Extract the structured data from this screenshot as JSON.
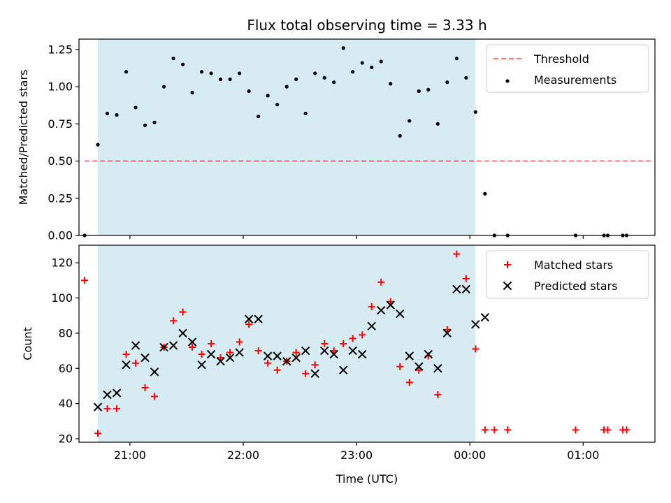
{
  "title": "Flux total observing time = 3.33 h",
  "colors": {
    "observing_span": "#add8e6",
    "threshold": "#ff0000",
    "measurements": "#000000",
    "matched": "#ff0000",
    "predicted": "#000000"
  },
  "chart_data": [
    {
      "type": "scatter",
      "panel": "top",
      "title": "Flux total observing time = 3.33 h",
      "xlabel": "",
      "ylabel": "Matched/Predicted stars",
      "xlim": [
        "20:33",
        "01:38"
      ],
      "ylim": [
        0,
        1.32
      ],
      "yticks": [
        0.0,
        0.25,
        0.5,
        0.75,
        1.0,
        1.25
      ],
      "ytick_labels": [
        "0.00",
        "0.25",
        "0.50",
        "0.75",
        "1.00",
        "1.25"
      ],
      "xticks": [
        "21:00",
        "22:00",
        "23:00",
        "00:00",
        "01:00"
      ],
      "observing_span": [
        "20:43",
        "00:03"
      ],
      "grid": false,
      "legend_position": "top-right",
      "series": [
        {
          "name": "Threshold",
          "kind": "dashed-line",
          "x": [
            "20:36",
            "01:36"
          ],
          "y": [
            0.5,
            0.5
          ]
        },
        {
          "name": "Measurements",
          "kind": "points",
          "x": [
            "20:36",
            "20:43",
            "20:48",
            "20:53",
            "20:58",
            "21:03",
            "21:08",
            "21:13",
            "21:18",
            "21:23",
            "21:28",
            "21:33",
            "21:38",
            "21:43",
            "21:48",
            "21:53",
            "21:58",
            "22:03",
            "22:08",
            "22:13",
            "22:18",
            "22:23",
            "22:28",
            "22:33",
            "22:38",
            "22:43",
            "22:48",
            "22:53",
            "22:58",
            "23:03",
            "23:08",
            "23:13",
            "23:18",
            "23:23",
            "23:28",
            "23:33",
            "23:38",
            "23:43",
            "23:48",
            "23:53",
            "23:58",
            "00:03",
            "00:08",
            "00:13",
            "00:20",
            "00:56",
            "01:11",
            "01:13",
            "01:21",
            "01:23"
          ],
          "y": [
            0.0,
            0.61,
            0.82,
            0.81,
            1.1,
            0.86,
            0.74,
            0.76,
            1.0,
            1.19,
            1.15,
            0.96,
            1.1,
            1.09,
            1.05,
            1.05,
            1.09,
            0.97,
            0.8,
            0.94,
            0.88,
            1.0,
            1.05,
            0.82,
            1.09,
            1.06,
            1.03,
            1.26,
            1.1,
            1.16,
            1.13,
            1.17,
            1.02,
            0.67,
            0.77,
            0.97,
            0.98,
            0.75,
            1.03,
            1.19,
            1.06,
            0.83,
            0.28,
            0.0,
            0.0,
            0.0,
            0.0,
            0.0,
            0.0,
            0.0
          ]
        }
      ]
    },
    {
      "type": "scatter",
      "panel": "bottom",
      "xlabel": "Time (UTC)",
      "ylabel": "Count",
      "xlim": [
        "20:33",
        "01:38"
      ],
      "ylim": [
        18,
        130
      ],
      "yticks": [
        20,
        40,
        60,
        80,
        100,
        120
      ],
      "ytick_labels": [
        "20",
        "40",
        "60",
        "80",
        "100",
        "120"
      ],
      "xticks": [
        "21:00",
        "22:00",
        "23:00",
        "00:00",
        "01:00"
      ],
      "xtick_labels": [
        "21:00",
        "22:00",
        "23:00",
        "00:00",
        "01:00"
      ],
      "observing_span": [
        "20:43",
        "00:03"
      ],
      "grid": false,
      "legend_position": "top-right",
      "series": [
        {
          "name": "Matched stars",
          "kind": "plus",
          "x": [
            "20:36",
            "20:43",
            "20:48",
            "20:53",
            "20:58",
            "21:03",
            "21:08",
            "21:13",
            "21:18",
            "21:23",
            "21:28",
            "21:33",
            "21:38",
            "21:43",
            "21:48",
            "21:53",
            "21:58",
            "22:03",
            "22:08",
            "22:13",
            "22:18",
            "22:23",
            "22:28",
            "22:33",
            "22:38",
            "22:43",
            "22:48",
            "22:53",
            "22:58",
            "23:03",
            "23:08",
            "23:13",
            "23:18",
            "23:23",
            "23:28",
            "23:33",
            "23:38",
            "23:43",
            "23:48",
            "23:53",
            "23:58",
            "00:03",
            "00:08",
            "00:13",
            "00:20",
            "00:56",
            "01:11",
            "01:13",
            "01:21",
            "01:23"
          ],
          "y": [
            110,
            23,
            37,
            37,
            68,
            63,
            49,
            44,
            72,
            87,
            92,
            72,
            68,
            74,
            66,
            69,
            75,
            85,
            70,
            63,
            59,
            64,
            69,
            57,
            62,
            74,
            70,
            74,
            77,
            79,
            95,
            109,
            98,
            61,
            52,
            59,
            67,
            45,
            82,
            125,
            111,
            71,
            25,
            25,
            25,
            25,
            25,
            25,
            25,
            25
          ]
        },
        {
          "name": "Predicted stars",
          "kind": "cross",
          "x": [
            "20:43",
            "20:48",
            "20:53",
            "20:58",
            "21:03",
            "21:08",
            "21:13",
            "21:18",
            "21:23",
            "21:28",
            "21:33",
            "21:38",
            "21:43",
            "21:48",
            "21:53",
            "21:58",
            "22:03",
            "22:08",
            "22:13",
            "22:18",
            "22:23",
            "22:28",
            "22:33",
            "22:38",
            "22:43",
            "22:48",
            "22:53",
            "22:58",
            "23:03",
            "23:08",
            "23:13",
            "23:18",
            "23:23",
            "23:28",
            "23:33",
            "23:38",
            "23:43",
            "23:48",
            "23:53",
            "23:58",
            "00:03",
            "00:08"
          ],
          "y": [
            38,
            45,
            46,
            62,
            73,
            66,
            58,
            72,
            73,
            80,
            75,
            62,
            68,
            64,
            66,
            69,
            88,
            88,
            67,
            67,
            64,
            66,
            70,
            57,
            70,
            68,
            59,
            70,
            68,
            84,
            93,
            96,
            91,
            67,
            61,
            68,
            60,
            80,
            105,
            105,
            85,
            89
          ]
        }
      ]
    }
  ]
}
